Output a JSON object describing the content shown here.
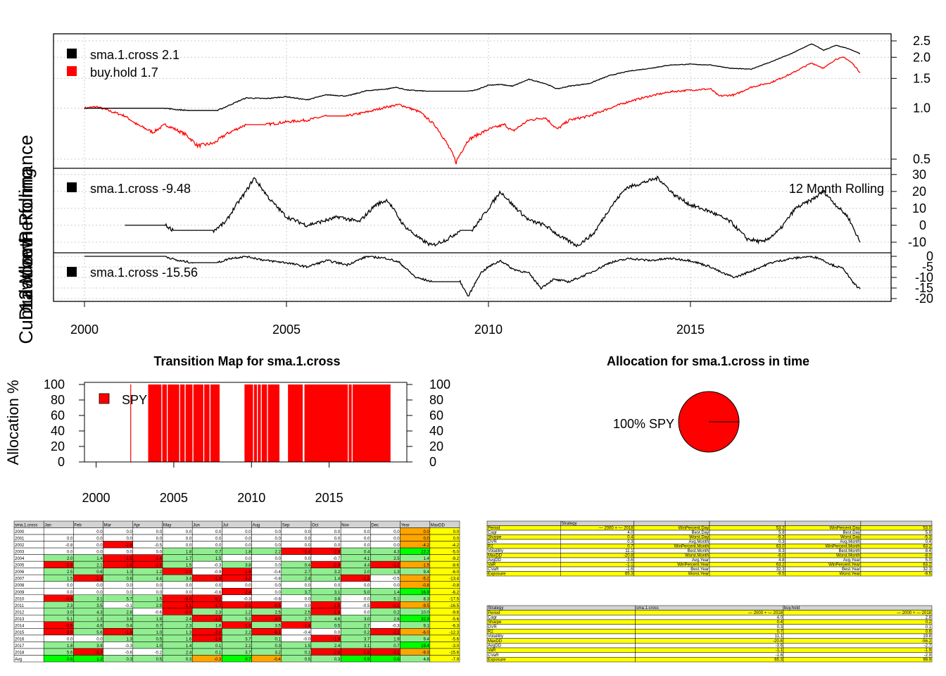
{
  "colors": {
    "strategy": "#000000",
    "benchmark": "#ff0000",
    "grid": "#cccccc",
    "good": "#00ff00",
    "ok": "#90ee90",
    "bad": "#ff0000",
    "warn": "#ffa500",
    "hi": "#ffff00"
  },
  "chart_data": [
    {
      "type": "line",
      "title": "",
      "ylabel": "Cumulative Performance",
      "yscale": "log",
      "ylim": [
        0.45,
        2.7
      ],
      "yticks": [
        "2.5",
        "2.0",
        "1.5",
        "1.0",
        "0.5"
      ],
      "x_range": [
        2000,
        2019.2
      ],
      "xticks": [
        "2000",
        "2005",
        "2010",
        "2015"
      ],
      "legend": [
        {
          "label": "sma.1.cross 2.1"
        },
        {
          "label": "buy.hold 1.7"
        }
      ],
      "series": [
        {
          "name": "sma.1.cross",
          "x": [
            2000.0,
            2000.5,
            2001.0,
            2001.5,
            2002.0,
            2002.3,
            2002.6,
            2003.0,
            2003.3,
            2003.5,
            2004.0,
            2004.5,
            2005.0,
            2005.5,
            2006.0,
            2006.5,
            2007.0,
            2007.5,
            2007.7,
            2008.0,
            2008.5,
            2009.0,
            2009.5,
            2009.7,
            2010.0,
            2010.3,
            2010.6,
            2011.0,
            2011.4,
            2011.7,
            2012.0,
            2012.5,
            2013.0,
            2013.5,
            2014.0,
            2014.5,
            2015.0,
            2015.5,
            2016.0,
            2016.5,
            2017.0,
            2017.5,
            2018.0,
            2018.3,
            2018.6,
            2018.9,
            2019.2
          ],
          "values": [
            1.0,
            1.0,
            1.0,
            1.0,
            1.0,
            0.98,
            0.97,
            0.97,
            0.97,
            1.02,
            1.15,
            1.14,
            1.17,
            1.12,
            1.2,
            1.18,
            1.27,
            1.3,
            1.33,
            1.28,
            1.26,
            1.26,
            1.26,
            1.28,
            1.37,
            1.38,
            1.35,
            1.48,
            1.4,
            1.3,
            1.35,
            1.4,
            1.56,
            1.66,
            1.72,
            1.8,
            1.82,
            1.8,
            1.72,
            1.7,
            1.88,
            2.1,
            2.4,
            2.2,
            2.35,
            2.25,
            2.1
          ]
        },
        {
          "name": "buy.hold",
          "x": [
            2000.0,
            2000.3,
            2000.7,
            2001.0,
            2001.3,
            2001.7,
            2002.0,
            2002.5,
            2002.8,
            2003.2,
            2003.5,
            2004.0,
            2004.5,
            2005.0,
            2005.5,
            2006.0,
            2006.5,
            2007.0,
            2007.5,
            2007.8,
            2008.3,
            2008.7,
            2009.0,
            2009.2,
            2009.5,
            2010.0,
            2010.4,
            2010.6,
            2011.0,
            2011.4,
            2011.7,
            2012.0,
            2012.5,
            2013.0,
            2013.5,
            2014.0,
            2014.5,
            2015.0,
            2015.5,
            2015.7,
            2016.1,
            2016.5,
            2017.0,
            2017.5,
            2018.0,
            2018.3,
            2018.6,
            2018.8,
            2019.0,
            2019.2
          ],
          "values": [
            1.0,
            1.02,
            0.95,
            0.9,
            0.8,
            0.72,
            0.8,
            0.7,
            0.6,
            0.62,
            0.7,
            0.8,
            0.8,
            0.83,
            0.85,
            0.9,
            0.9,
            0.95,
            1.02,
            1.05,
            0.95,
            0.78,
            0.6,
            0.48,
            0.65,
            0.75,
            0.8,
            0.73,
            0.85,
            0.88,
            0.75,
            0.85,
            0.9,
            1.0,
            1.1,
            1.18,
            1.25,
            1.28,
            1.3,
            1.18,
            1.2,
            1.33,
            1.42,
            1.6,
            1.85,
            1.72,
            1.95,
            2.0,
            1.85,
            1.62
          ]
        }
      ]
    },
    {
      "type": "line",
      "ylabel": "12 Month Rolling",
      "annotation": "12 Month Rolling",
      "ylim": [
        -15,
        32
      ],
      "yticks": [
        "30",
        "20",
        "10",
        "0",
        "-10"
      ],
      "legend": [
        {
          "label": "sma.1.cross -9.48"
        }
      ],
      "series": [
        {
          "name": "sma.1.cross",
          "x": [
            2001.0,
            2001.5,
            2002.0,
            2002.2,
            2002.5,
            2003.0,
            2003.2,
            2003.5,
            2003.7,
            2004.0,
            2004.2,
            2004.6,
            2005.0,
            2005.5,
            2006.0,
            2006.3,
            2006.8,
            2007.2,
            2007.5,
            2007.9,
            2008.3,
            2008.6,
            2009.0,
            2009.3,
            2009.6,
            2010.0,
            2010.3,
            2010.6,
            2011.0,
            2011.4,
            2011.8,
            2012.2,
            2012.6,
            2013.0,
            2013.4,
            2013.8,
            2014.2,
            2014.6,
            2015.0,
            2015.5,
            2016.0,
            2016.4,
            2016.8,
            2017.2,
            2017.6,
            2018.0,
            2018.3,
            2018.6,
            2018.9,
            2019.2
          ],
          "values": [
            0,
            0,
            0,
            -3,
            -3,
            -3,
            -3,
            2,
            10,
            20,
            28,
            15,
            5,
            0,
            3,
            5,
            2,
            12,
            15,
            0,
            -8,
            -12,
            -8,
            -3,
            -3,
            10,
            20,
            12,
            3,
            0,
            -7,
            -12,
            -5,
            10,
            22,
            25,
            28,
            18,
            12,
            8,
            2,
            -8,
            -10,
            -3,
            10,
            15,
            20,
            12,
            5,
            -10
          ]
        }
      ]
    },
    {
      "type": "line",
      "ylabel": "Drawdown",
      "ylim": [
        -21,
        1
      ],
      "yticks": [
        "0",
        "-5",
        "-10",
        "-15",
        "-20"
      ],
      "legend": [
        {
          "label": "sma.1.cross -15.56"
        }
      ],
      "series": [
        {
          "name": "sma.1.cross",
          "x": [
            2000.0,
            2000.5,
            2001.0,
            2001.5,
            2002.0,
            2002.3,
            2002.7,
            2003.3,
            2003.6,
            2004.0,
            2004.5,
            2005.0,
            2005.5,
            2006.0,
            2006.5,
            2007.0,
            2007.5,
            2007.8,
            2008.2,
            2008.6,
            2009.0,
            2009.3,
            2009.5,
            2009.8,
            2010.0,
            2010.3,
            2010.6,
            2011.0,
            2011.3,
            2011.6,
            2012.0,
            2012.5,
            2013.0,
            2013.5,
            2014.0,
            2014.5,
            2015.0,
            2015.5,
            2015.8,
            2016.1,
            2016.5,
            2017.0,
            2017.5,
            2018.0,
            2018.2,
            2018.5,
            2018.8,
            2019.0,
            2019.2
          ],
          "values": [
            0,
            0,
            0,
            0,
            0,
            -2,
            -3,
            -3,
            -1,
            0,
            -2,
            -3,
            -5,
            -2,
            -4,
            0,
            -1,
            -3,
            -10,
            -12,
            -12,
            -12,
            -19,
            -8,
            -5,
            -2,
            -6,
            -8,
            -15,
            -11,
            -12,
            -8,
            -3,
            -1,
            -2,
            -1,
            -2,
            -5,
            -8,
            -10,
            -7,
            -3,
            -1,
            0,
            -1,
            -4,
            -6,
            -12,
            -15.5
          ]
        }
      ]
    },
    {
      "type": "area",
      "title": "Transition Map for sma.1.cross",
      "ylabel": "Allocation %",
      "ylim": [
        0,
        100
      ],
      "yticks": [
        "100",
        "80",
        "60",
        "40",
        "20",
        "0"
      ],
      "xticks": [
        "2000",
        "2005",
        "2010",
        "2015"
      ],
      "legend": [
        {
          "label": "SPY"
        }
      ],
      "intervals": [
        [
          2002.2,
          2002.23
        ],
        [
          2003.35,
          2007.95
        ],
        [
          2009.55,
          2011.8
        ],
        [
          2012.35,
          2018.95
        ]
      ],
      "gaps": [
        2004.2,
        2004.55,
        2005.35,
        2005.7,
        2006.2,
        2006.9,
        2007.3,
        2010.1,
        2010.35,
        2010.6,
        2011.0,
        2013.3,
        2013.35,
        2016.2,
        2016.45
      ]
    },
    {
      "type": "pie",
      "title": "Allocation for sma.1.cross in time",
      "labels": [
        "100% SPY"
      ],
      "values": [
        100
      ]
    }
  ],
  "monthly_table": {
    "header": [
      "sma.1.cross",
      "Jan",
      "Feb",
      "Mar",
      "Apr",
      "May",
      "Jun",
      "Jul",
      "Aug",
      "Sep",
      "Oct",
      "Nov",
      "Dec",
      "Year",
      "MaxDD"
    ],
    "rows": [
      [
        "2000",
        "",
        "0.0",
        "0.0",
        "0.0",
        "0.0",
        "0.0",
        "0.0",
        "0.0",
        "0.0",
        "0.0",
        "0.0",
        "0.0",
        "0.0",
        "0.0"
      ],
      [
        "2001",
        "0.0",
        "0.0",
        "0.0",
        "0.0",
        "0.0",
        "0.0",
        "0.0",
        "0.0",
        "0.0",
        "0.0",
        "0.0",
        "0.0",
        "0.0",
        "0.0"
      ],
      [
        "2002",
        "-0.8",
        "0.0",
        "-2.6",
        "-0.5",
        "0.0",
        "0.0",
        "0.0",
        "0.0",
        "0.0",
        "0.0",
        "0.0",
        "0.0",
        "-4.2",
        "-4.2"
      ],
      [
        "2003",
        "0.0",
        "0.0",
        "0.0",
        "0.0",
        "1.8",
        "0.7",
        "1.8",
        "2.2",
        "-1.4",
        "-2.9",
        "0.4",
        "4.3",
        "22.2",
        "-5.0"
      ],
      [
        "2004",
        "2.0",
        "1.4",
        "-1.5",
        "-1.4",
        "1.7",
        "1.5",
        "0.0",
        "0.0",
        "0.0",
        "-0.7",
        "4.1",
        "2.5",
        "1.4",
        "-9.2"
      ],
      [
        "2005",
        "-2.0",
        "2.1",
        "-1.8",
        "-1.5",
        "1.5",
        "-0.3",
        "3.8",
        "0.0",
        "0.4",
        "-2.9",
        "4.4",
        "-1.2",
        "-1.5",
        "-8.6"
      ],
      [
        "2006",
        "2.5",
        "0.6",
        "1.3",
        "1.2",
        "-2.9",
        "-0.9",
        "-1.6",
        "-0.4",
        "2.7",
        "3.2",
        "2.0",
        "1.3",
        "9.4",
        "-6.0"
      ],
      [
        "2007",
        "1.5",
        "-2.3",
        "0.8",
        "4.4",
        "3.4",
        "-1.9",
        "-3.2",
        "-0.8",
        "2.4",
        "1.4",
        "-1.2",
        "-0.5",
        "-5.2",
        "-13.4"
      ],
      [
        "2008",
        "0.0",
        "0.0",
        "0.0",
        "0.0",
        "0.0",
        "0.0",
        "0.0",
        "0.0",
        "0.0",
        "0.0",
        "0.0",
        "0.0",
        "-0.8",
        "-0.8"
      ],
      [
        "2009",
        "0.0",
        "0.0",
        "0.0",
        "0.0",
        "0.0",
        "-0.6",
        "-2.4",
        "0.0",
        "3.7",
        "3.1",
        "5.0",
        "1.4",
        "16.9",
        "-6.2"
      ],
      [
        "2010",
        "-3.6",
        "3.1",
        "5.7",
        "1.5",
        "-8.0",
        "-5.2",
        "-0.3",
        "-0.8",
        "0.0",
        "3.8",
        "0.0",
        "5.1",
        "8.3",
        "-17.5"
      ],
      [
        "2011",
        "2.3",
        "3.5",
        "-0.1",
        "2.9",
        "-1.1",
        "-1.7",
        "-2.1",
        "-5.5",
        "0.0",
        "-1.5",
        "-0.5",
        "-1.1",
        "-9.5",
        "-16.5"
      ],
      [
        "2012",
        "3.0",
        "4.3",
        "2.8",
        "-0.6",
        "-6.0",
        "2.3",
        "1.2",
        "2.5",
        "2.5",
        "-1.8",
        "0.0",
        "0.2",
        "10.0",
        "-9.6"
      ],
      [
        "2013",
        "5.1",
        "1.3",
        "3.8",
        "1.9",
        "2.4",
        "-1.3",
        "5.2",
        "-3.0",
        "2.7",
        "4.6",
        "3.0",
        "2.6",
        "32.3",
        "-5.6"
      ],
      [
        "2014",
        "-3.5",
        "4.6",
        "0.4",
        "0.7",
        "2.3",
        "1.6",
        "-1.3",
        "3.5",
        "-1.4",
        "0.5",
        "2.7",
        "-0.3",
        "9.1",
        "-6.3"
      ],
      [
        "2015",
        "-3.0",
        "5.6",
        "-1.6",
        "1.0",
        "1.3",
        "-2.0",
        "2.2",
        "-6.1",
        "-0.4",
        "0.0",
        "0.2",
        "-2.2",
        "-6.0",
        "-12.3"
      ],
      [
        "2016",
        "0.0",
        "0.0",
        "1.3",
        "0.5",
        "1.6",
        "-1.6",
        "3.7",
        "0.1",
        "-0.0",
        "-1.9",
        "3.7",
        "1.9",
        "9.4",
        "-5.6"
      ],
      [
        "2017",
        "1.8",
        "3.9",
        "-0.3",
        "1.0",
        "1.4",
        "0.1",
        "2.1",
        "0.3",
        "1.5",
        "2.4",
        "3.1",
        "0.7",
        "19.4",
        "-3.0"
      ],
      [
        "2018",
        "5.6",
        "-3.7",
        "-0.6",
        "-0.2",
        "2.4",
        "0.1",
        "3.7",
        "3.2",
        "0.1",
        "-2.8",
        "-1.8",
        "-3.1",
        "-9.3",
        "-15.6"
      ],
      [
        "Avg",
        "0.6",
        "1.2",
        "0.3",
        "0.5",
        "0.3",
        "-0.3",
        "0.7",
        "-0.4",
        "0.5",
        "0.3",
        "0.9",
        "0.6",
        "4.8",
        "-7.9"
      ]
    ]
  },
  "stats_table_top": {
    "header": [
      "",
      "Strategy",
      "",
      "",
      "",
      "",
      ""
    ],
    "rows": [
      [
        "Period",
        "— 2000 + — 2018",
        "WinPercent.Day",
        "53.2",
        "WinPercent.Day",
        "53.0"
      ],
      [
        "Cagr",
        "4.0",
        "Best.Day",
        "5.8",
        "Best.Day",
        "5.8"
      ],
      [
        "Sharpe",
        "0.4",
        "Worst.Day",
        "-5.3",
        "Worst.Day",
        "-5.3"
      ],
      [
        "DVR",
        "0.3",
        "Avg.Month",
        "0.3",
        "Avg.Month",
        "0.4"
      ],
      [
        "R2",
        "0.7",
        "WinPercent.Month",
        "63.0",
        "WinPercent.Month",
        "63.2"
      ],
      [
        "Volatility",
        "11.1",
        "Best.Month",
        "8.3",
        "Best.Month",
        "8.4"
      ],
      [
        "MaxDD",
        "-20.8",
        "Worst.Month",
        "-8.0",
        "Worst.Month",
        "-8.0"
      ],
      [
        "AvgDD",
        "-3.6",
        "Avg.Year",
        "4.8",
        "Avg.Year",
        "5.0"
      ],
      [
        "VaR",
        "-1.1",
        "WinPercent.Year",
        "63.2",
        "WinPercent.Year",
        "63.2"
      ],
      [
        "CVaR",
        "-1.6",
        "Best.Year",
        "32.3",
        "Best.Year",
        "32.3"
      ],
      [
        "Exposure",
        "65.3",
        "Worst.Year",
        "-9.5",
        "Worst.Year",
        "-9.5"
      ]
    ]
  },
  "stats_table_bottom": {
    "header": [
      "Strategy",
      "sma.1.cross",
      "buy.hold"
    ],
    "rows": [
      [
        "Period",
        "— 2000 + — 2018",
        "— 2000 + — 2018"
      ],
      [
        "Cagr",
        "4.0",
        "2.8"
      ],
      [
        "Sharpe",
        "0.4",
        "0.2"
      ],
      [
        "DVR",
        "0.3",
        "0.1"
      ],
      [
        "R2",
        "0.7",
        "0.6"
      ],
      [
        "Volatility",
        "11.1",
        "19.8"
      ],
      [
        "MaxDD",
        "-20.8",
        "-56.2"
      ],
      [
        "AvgDD",
        "-3.6",
        "-2.7"
      ],
      [
        "VaR",
        "-1.1",
        "-1.9"
      ],
      [
        "CVaR",
        "-1.6",
        "-2.9"
      ],
      [
        "Exposure",
        "65.3",
        "99.9"
      ]
    ]
  }
}
